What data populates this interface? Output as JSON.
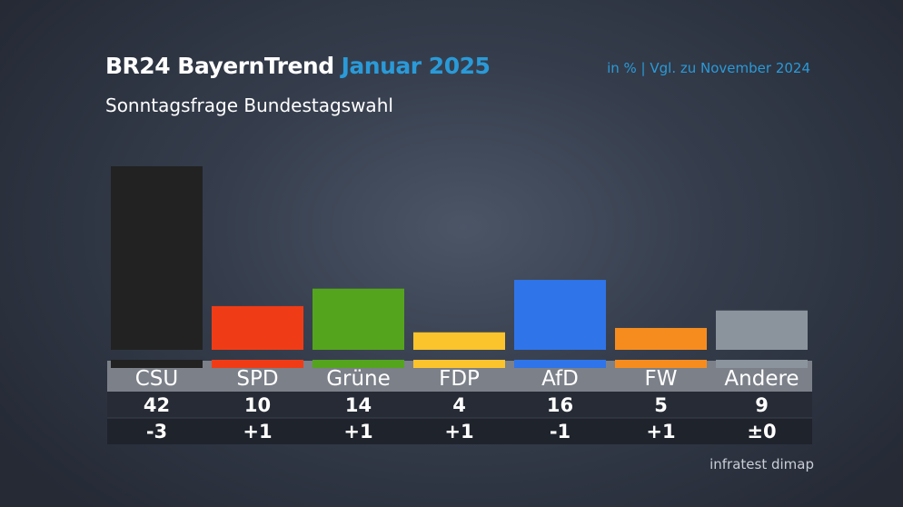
{
  "header": {
    "title": "BR24 BayernTrend",
    "date": "Januar 2025",
    "subtitle": "Sonntagsfrage Bundestagswahl",
    "unit_note": "in % | Vgl. zu November 2024"
  },
  "source": "infratest dimap",
  "chart_data": {
    "type": "bar",
    "title": "Sonntagsfrage Bundestagswahl",
    "unit": "%",
    "categories": [
      "CSU",
      "SPD",
      "Grüne",
      "FDP",
      "AfD",
      "FW",
      "Andere"
    ],
    "values": [
      42,
      10,
      14,
      4,
      16,
      5,
      9
    ],
    "value_labels": [
      "42",
      "10",
      "14",
      "4",
      "16",
      "5",
      "9"
    ],
    "change_vs_previous": [
      -3,
      1,
      1,
      1,
      -1,
      1,
      0
    ],
    "change_labels": [
      "-3",
      "+1",
      "+1",
      "+1",
      "-1",
      "+1",
      "±0"
    ],
    "colors": [
      "#222222",
      "#f03c16",
      "#55a41d",
      "#fcc42c",
      "#2f74e8",
      "#f78c1e",
      "#8b949c"
    ],
    "ylim": [
      0,
      42
    ],
    "grid": false,
    "legend": "none"
  }
}
